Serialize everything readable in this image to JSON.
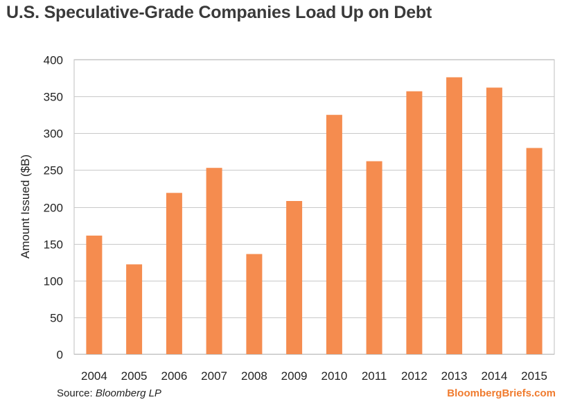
{
  "chart_data": {
    "type": "bar",
    "title": "U.S. Speculative-Grade Companies Load Up on Debt",
    "ylabel": "Amount Issued ($B)",
    "xlabel": "",
    "categories": [
      "2004",
      "2005",
      "2006",
      "2007",
      "2008",
      "2009",
      "2010",
      "2011",
      "2012",
      "2013",
      "2014",
      "2015"
    ],
    "values": [
      161,
      122,
      219,
      253,
      136,
      208,
      325,
      262,
      357,
      376,
      362,
      280
    ],
    "ylim": [
      0,
      400
    ],
    "yticks": [
      0,
      50,
      100,
      150,
      200,
      250,
      300,
      350,
      400
    ],
    "grid": true,
    "bar_color": "#f58c4f"
  },
  "footer": {
    "source_prefix": "Source: ",
    "source_name": "Bloomberg LP",
    "brand": "BloombergBriefs.com"
  }
}
